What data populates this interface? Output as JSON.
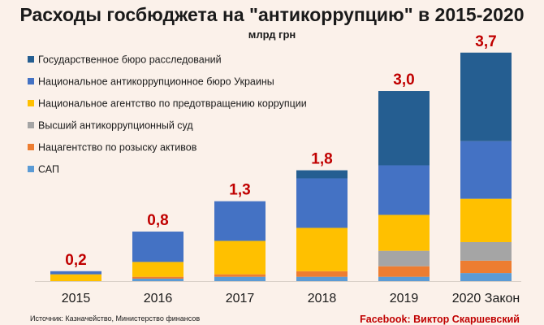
{
  "chart_data": {
    "type": "bar",
    "stacked": true,
    "title": "Расходы госбюджета на \"антикоррупцию\" в 2015-2020",
    "subtitle": "млрд грн",
    "xlabel": "",
    "ylabel": "",
    "ylim": [
      0,
      3.7
    ],
    "grid": false,
    "legend_position": "top-left",
    "categories": [
      "2015",
      "2016",
      "2017",
      "2018",
      "2019",
      "2020 Закон"
    ],
    "totals": [
      "0,2",
      "0,8",
      "1,3",
      "1,8",
      "3,0",
      "3,7"
    ],
    "series": [
      {
        "name": "САП",
        "color": "#5b9bd5",
        "values": [
          0,
          0.04,
          0.07,
          0.07,
          0.07,
          0.13
        ]
      },
      {
        "name": "Нацагентство по розыску активов",
        "color": "#ed7d31",
        "values": [
          0,
          0.03,
          0.04,
          0.09,
          0.17,
          0.2
        ]
      },
      {
        "name": "Высший антикоррупционный суд",
        "color": "#a5a5a5",
        "values": [
          0,
          0,
          0,
          0,
          0.25,
          0.3
        ]
      },
      {
        "name": "Национальное агентство по предотвращению коррупции",
        "color": "#ffc000",
        "values": [
          0.11,
          0.24,
          0.54,
          0.7,
          0.58,
          0.7
        ]
      },
      {
        "name": "Национальное антикоррупционное бюро Украины",
        "color": "#4472c4",
        "values": [
          0.05,
          0.49,
          0.64,
          0.8,
          0.8,
          0.93
        ]
      },
      {
        "name": "Государственное бюро расследований",
        "color": "#255e91",
        "values": [
          0,
          0,
          0,
          0.13,
          1.2,
          1.43
        ]
      }
    ],
    "legend_order": [
      5,
      4,
      3,
      2,
      1,
      0
    ],
    "total_label_color": "#c00000"
  },
  "footer": {
    "source": "Источник: Казначейство, Министерство финансов",
    "credit": "Facebook: Виктор Скаршевский"
  }
}
